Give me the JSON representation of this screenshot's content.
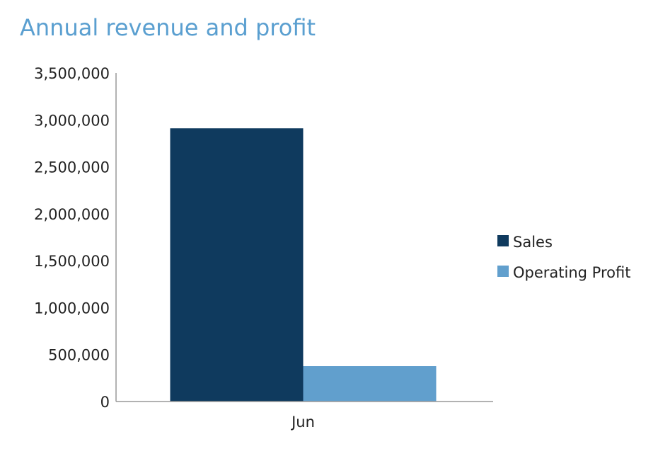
{
  "chart_data": {
    "type": "bar",
    "title": "Annual revenue and profit",
    "categories": [
      "Jun"
    ],
    "series": [
      {
        "name": "Sales",
        "values": [
          2910000
        ],
        "color": "#0f3a5e"
      },
      {
        "name": "Operating Profit",
        "values": [
          377000
        ],
        "color": "#619fcd"
      }
    ],
    "ylim": [
      0,
      3500000
    ],
    "yticks": [
      "0",
      "500,000",
      "1,000,000",
      "1,500,000",
      "2,000,000",
      "2,500,000",
      "3,000,000",
      "3,500,000"
    ],
    "grid": false,
    "legend": "right",
    "title_color": "#5a9fd0"
  }
}
